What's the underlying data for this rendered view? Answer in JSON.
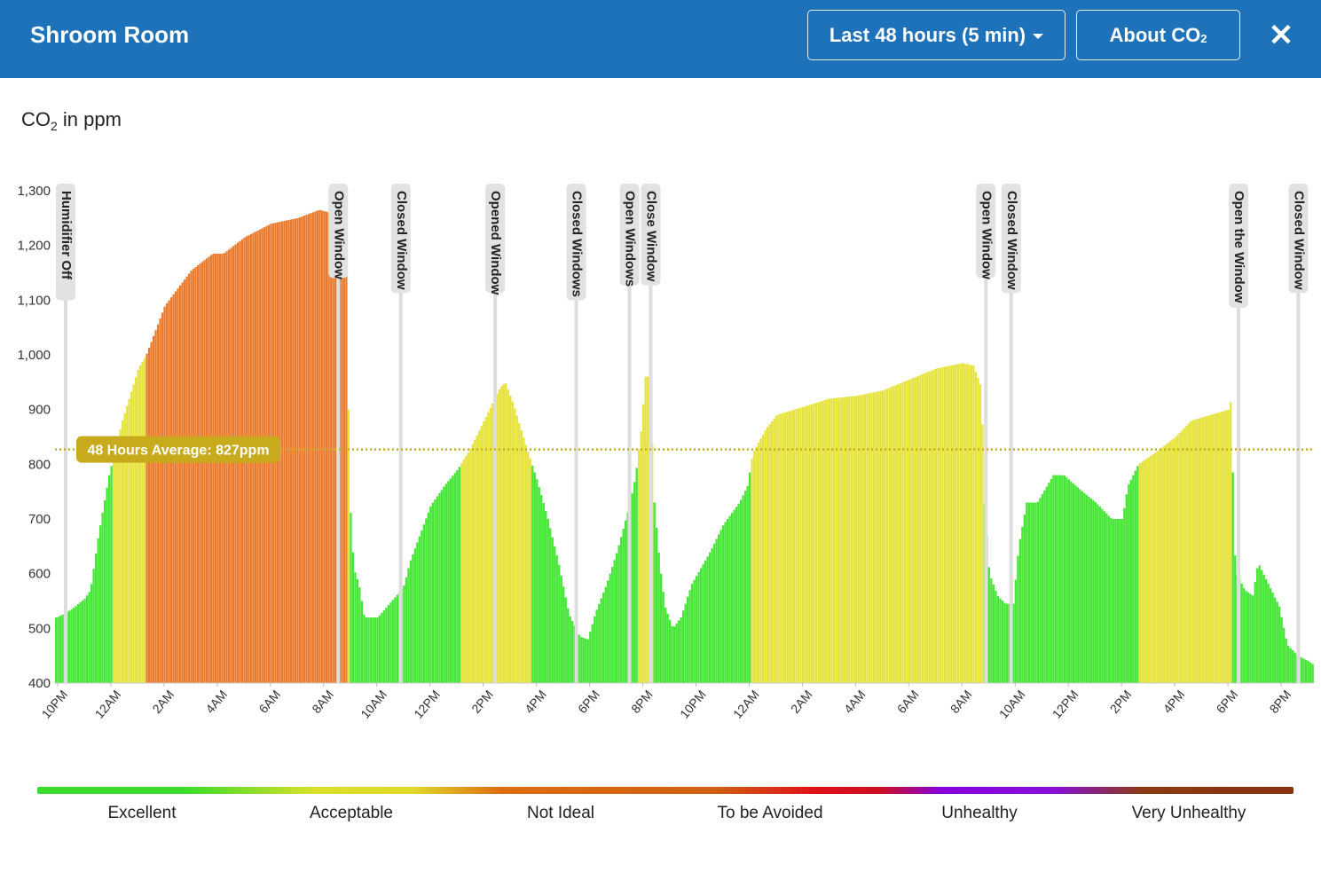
{
  "header": {
    "title": "Shroom Room",
    "range_label": "Last 48 hours (5 min)",
    "about_label": "About CO",
    "about_sub": "2",
    "close_glyph": "✕",
    "background_color": "#1e72ba"
  },
  "unit_label": {
    "main": "CO",
    "sub": "2",
    "suffix": " in ppm"
  },
  "legend": [
    {
      "label": "Excellent",
      "color": "#3ddc2b"
    },
    {
      "label": "Acceptable",
      "color": "#e1d82a"
    },
    {
      "label": "Not Ideal",
      "color": "#de6c10"
    },
    {
      "label": "To be Avoided",
      "color": "#e0101a"
    },
    {
      "label": "Unhealthy",
      "color": "#8800dd"
    },
    {
      "label": "Very Unhealthy",
      "color": "#8b3210"
    }
  ],
  "chart_data": {
    "type": "bar",
    "title": "",
    "ylabel": "CO2 in ppm",
    "ylim": [
      400,
      1300
    ],
    "yticks": [
      400,
      500,
      600,
      700,
      800,
      900,
      1000,
      1100,
      1200,
      1300
    ],
    "ytick_labels": [
      "400",
      "500",
      "600",
      "700",
      "800",
      "900",
      "1,000",
      "1,100",
      "1,200",
      "1,300"
    ],
    "x_range_hours": [
      -0.1,
      47.2
    ],
    "xticks": [
      {
        "hour": 0,
        "label": "10PM"
      },
      {
        "hour": 2,
        "label": "12AM"
      },
      {
        "hour": 4,
        "label": "2AM"
      },
      {
        "hour": 6,
        "label": "4AM"
      },
      {
        "hour": 8,
        "label": "6AM"
      },
      {
        "hour": 10,
        "label": "8AM"
      },
      {
        "hour": 12,
        "label": "10AM"
      },
      {
        "hour": 14,
        "label": "12PM"
      },
      {
        "hour": 16,
        "label": "2PM"
      },
      {
        "hour": 18,
        "label": "4PM"
      },
      {
        "hour": 20,
        "label": "6PM"
      },
      {
        "hour": 22,
        "label": "8PM"
      },
      {
        "hour": 24,
        "label": "10PM"
      },
      {
        "hour": 26,
        "label": "12AM"
      },
      {
        "hour": 28,
        "label": "2AM"
      },
      {
        "hour": 30,
        "label": "4AM"
      },
      {
        "hour": 32,
        "label": "6AM"
      },
      {
        "hour": 34,
        "label": "8AM"
      },
      {
        "hour": 36,
        "label": "10AM"
      },
      {
        "hour": 38,
        "label": "12PM"
      },
      {
        "hour": 40,
        "label": "2PM"
      },
      {
        "hour": 42,
        "label": "4PM"
      },
      {
        "hour": 44,
        "label": "6PM"
      },
      {
        "hour": 46,
        "label": "8PM"
      }
    ],
    "series_points": [
      [
        -0.05,
        520
      ],
      [
        0.5,
        535
      ],
      [
        1.0,
        555
      ],
      [
        1.2,
        570
      ],
      [
        1.5,
        670
      ],
      [
        1.9,
        780
      ],
      [
        2.4,
        880
      ],
      [
        3.0,
        975
      ],
      [
        3.3,
        1000
      ],
      [
        4.0,
        1090
      ],
      [
        5.0,
        1155
      ],
      [
        5.8,
        1185
      ],
      [
        6.2,
        1185
      ],
      [
        7.0,
        1215
      ],
      [
        8.0,
        1240
      ],
      [
        9.0,
        1250
      ],
      [
        9.8,
        1265
      ],
      [
        10.2,
        1260
      ],
      [
        10.5,
        1200
      ],
      [
        10.6,
        1260
      ],
      [
        10.8,
        1220
      ],
      [
        10.95,
        740
      ],
      [
        11.1,
        610
      ],
      [
        11.3,
        580
      ],
      [
        11.5,
        520
      ],
      [
        12.0,
        520
      ],
      [
        12.8,
        565
      ],
      [
        13.0,
        580
      ],
      [
        13.2,
        620
      ],
      [
        14.0,
        725
      ],
      [
        14.5,
        760
      ],
      [
        15.0,
        790
      ],
      [
        15.5,
        830
      ],
      [
        16.0,
        880
      ],
      [
        16.6,
        940
      ],
      [
        16.8,
        950
      ],
      [
        17.1,
        910
      ],
      [
        17.6,
        830
      ],
      [
        18.0,
        770
      ],
      [
        18.4,
        700
      ],
      [
        18.8,
        620
      ],
      [
        19.2,
        525
      ],
      [
        19.6,
        485
      ],
      [
        19.9,
        480
      ],
      [
        20.2,
        530
      ],
      [
        20.6,
        580
      ],
      [
        21.0,
        640
      ],
      [
        21.5,
        730
      ],
      [
        21.7,
        780
      ],
      [
        21.9,
        860
      ],
      [
        22.1,
        980
      ],
      [
        22.2,
        940
      ],
      [
        22.3,
        860
      ],
      [
        22.4,
        730
      ],
      [
        22.6,
        620
      ],
      [
        22.8,
        540
      ],
      [
        23.1,
        500
      ],
      [
        23.4,
        520
      ],
      [
        23.8,
        580
      ],
      [
        24.5,
        640
      ],
      [
        25.0,
        690
      ],
      [
        25.6,
        730
      ],
      [
        25.9,
        760
      ],
      [
        26.1,
        820
      ],
      [
        26.6,
        865
      ],
      [
        27.0,
        890
      ],
      [
        28.0,
        905
      ],
      [
        29.0,
        920
      ],
      [
        30.0,
        925
      ],
      [
        31.0,
        935
      ],
      [
        32.0,
        955
      ],
      [
        33.0,
        975
      ],
      [
        34.0,
        985
      ],
      [
        34.4,
        980
      ],
      [
        34.7,
        940
      ],
      [
        34.8,
        740
      ],
      [
        35.0,
        600
      ],
      [
        35.3,
        560
      ],
      [
        35.6,
        545
      ],
      [
        35.9,
        545
      ],
      [
        36.1,
        650
      ],
      [
        36.4,
        730
      ],
      [
        36.8,
        730
      ],
      [
        37.4,
        780
      ],
      [
        37.8,
        780
      ],
      [
        38.5,
        750
      ],
      [
        39.0,
        730
      ],
      [
        39.6,
        700
      ],
      [
        40.0,
        700
      ],
      [
        40.2,
        760
      ],
      [
        40.6,
        800
      ],
      [
        41.2,
        820
      ],
      [
        42.0,
        850
      ],
      [
        42.6,
        880
      ],
      [
        43.3,
        890
      ],
      [
        44.0,
        900
      ],
      [
        44.1,
        920
      ],
      [
        44.2,
        650
      ],
      [
        44.3,
        600
      ],
      [
        44.6,
        570
      ],
      [
        44.9,
        560
      ],
      [
        45.1,
        620
      ],
      [
        45.4,
        590
      ],
      [
        45.7,
        560
      ],
      [
        45.9,
        540
      ],
      [
        46.2,
        470
      ],
      [
        46.6,
        450
      ],
      [
        47.0,
        440
      ],
      [
        47.15,
        435
      ]
    ],
    "annotations": [
      {
        "hour": 0.3,
        "label": "Humidifier Off"
      },
      {
        "hour": 10.55,
        "label": "Open Window"
      },
      {
        "hour": 12.9,
        "label": "Closed Window"
      },
      {
        "hour": 16.45,
        "label": "Opened Window"
      },
      {
        "hour": 19.5,
        "label": "Closed Windows"
      },
      {
        "hour": 21.5,
        "label": "Open Windows"
      },
      {
        "hour": 22.3,
        "label": "Close Window"
      },
      {
        "hour": 34.9,
        "label": "Open Window"
      },
      {
        "hour": 35.85,
        "label": "Closed Window"
      },
      {
        "hour": 44.4,
        "label": "Open the Window"
      },
      {
        "hour": 46.65,
        "label": "Closed Window"
      }
    ],
    "average": {
      "value": 827,
      "label": "48 Hours Average: 827ppm",
      "color": "#c7ab1d"
    }
  }
}
